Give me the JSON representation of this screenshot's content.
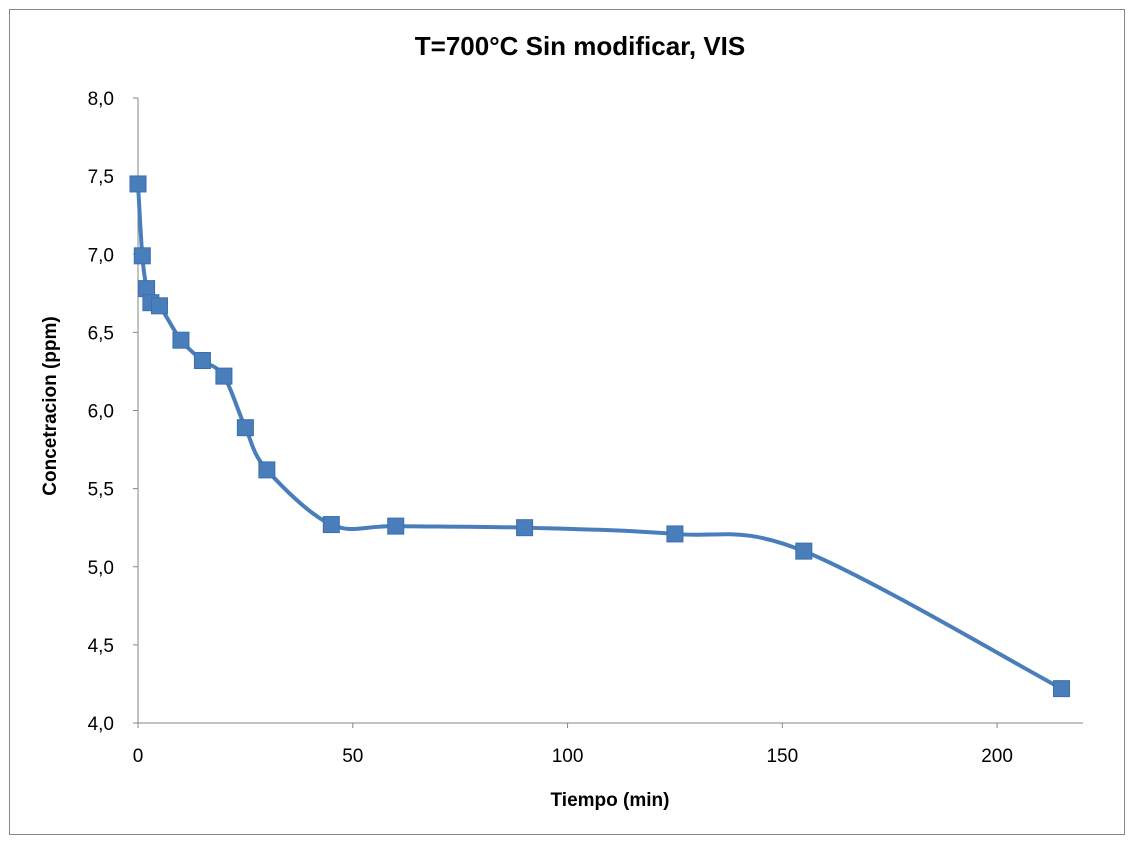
{
  "chart_data": {
    "type": "scatter",
    "title": "T=700°C Sin modificar, VIS",
    "xlabel": "Tiempo (min)",
    "ylabel": "Concetracion (ppm)",
    "xlim": [
      0,
      220
    ],
    "ylim": [
      4.0,
      8.0
    ],
    "x_ticks": [
      "0",
      "50",
      "100",
      "150",
      "200"
    ],
    "x_tick_values": [
      0,
      50,
      100,
      150,
      200
    ],
    "y_ticks": [
      "4,0",
      "4,5",
      "5,0",
      "5,5",
      "6,0",
      "6,5",
      "7,0",
      "7,5",
      "8,0"
    ],
    "y_tick_values": [
      4.0,
      4.5,
      5.0,
      5.5,
      6.0,
      6.5,
      7.0,
      7.5,
      8.0
    ],
    "grid": false,
    "series": [
      {
        "color": "#4A7EBB",
        "marker": "square",
        "line": "smooth",
        "x": [
          0,
          1,
          2,
          3,
          5,
          10,
          15,
          20,
          25,
          30,
          45,
          60,
          90,
          125,
          155,
          215
        ],
        "y": [
          7.45,
          6.99,
          6.78,
          6.69,
          6.67,
          6.45,
          6.32,
          6.22,
          5.89,
          5.62,
          5.27,
          5.26,
          5.25,
          5.21,
          5.1,
          4.22
        ]
      }
    ]
  }
}
